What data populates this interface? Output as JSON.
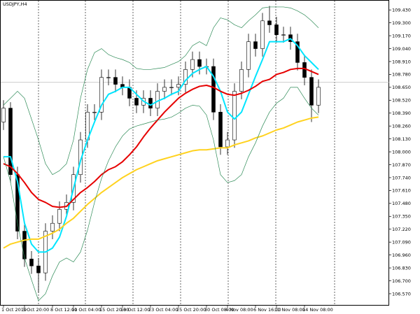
{
  "chart_data": {
    "type": "candlestick",
    "title": "USDJPY,H4",
    "categories": [
      "1 Oct 2019",
      null,
      null,
      "3 Oct 20:00",
      null,
      null,
      null,
      "8 Oct 12:00",
      null,
      null,
      "11 Oct 04:00",
      null,
      null,
      null,
      "15 Oct 20:00",
      null,
      null,
      "18 Oct 12:00",
      null,
      null,
      null,
      "23 Oct 04:00",
      null,
      null,
      null,
      "25 Oct 20:00",
      null,
      null,
      null,
      "30 Oct 08:00",
      null,
      null,
      "4 Nov 08:00",
      null,
      null,
      null,
      "6 Nov 16:00",
      null,
      null,
      "11 Nov 08:00",
      null,
      null,
      null,
      "14 Nov 08:00",
      null,
      null
    ],
    "open": [
      108.3,
      108.44,
      107.77,
      107.2,
      106.92,
      106.85,
      106.78,
      107.2,
      107.28,
      107.42,
      107.49,
      107.77,
      108.12,
      108.4,
      108.4,
      108.75,
      108.75,
      108.68,
      108.65,
      108.54,
      108.47,
      108.54,
      108.44,
      108.61,
      108.65,
      108.65,
      108.68,
      108.83,
      108.93,
      108.86,
      108.86,
      108.4,
      108.05,
      108.12,
      108.61,
      108.83,
      109.11,
      109.04,
      109.32,
      109.28,
      109.18,
      109.18,
      109.11,
      108.9,
      108.75,
      108.47
    ],
    "high": [
      108.52,
      108.5,
      107.85,
      107.28,
      107.0,
      106.93,
      107.28,
      107.36,
      107.5,
      107.57,
      107.85,
      108.2,
      108.48,
      108.48,
      108.83,
      108.83,
      108.83,
      108.76,
      108.73,
      108.62,
      108.62,
      108.62,
      108.69,
      108.73,
      108.73,
      108.76,
      108.91,
      109.01,
      109.01,
      108.94,
      108.94,
      108.48,
      108.2,
      108.69,
      108.91,
      109.19,
      109.19,
      109.4,
      109.47,
      109.36,
      109.26,
      109.26,
      109.19,
      108.98,
      108.83,
      108.73
    ],
    "low": [
      108.22,
      107.69,
      107.12,
      106.84,
      106.77,
      106.58,
      106.7,
      107.12,
      107.2,
      107.34,
      107.41,
      107.69,
      108.04,
      108.32,
      108.32,
      108.67,
      108.6,
      108.57,
      108.46,
      108.39,
      108.39,
      108.36,
      108.36,
      108.53,
      108.57,
      108.57,
      108.6,
      108.75,
      108.78,
      108.78,
      108.32,
      107.97,
      107.97,
      108.04,
      108.53,
      108.75,
      108.96,
      108.96,
      109.2,
      109.1,
      109.1,
      109.03,
      108.82,
      108.67,
      108.3,
      108.39
    ],
    "close": [
      108.44,
      107.77,
      107.2,
      106.92,
      106.85,
      106.78,
      107.2,
      107.28,
      107.42,
      107.49,
      107.77,
      108.12,
      108.4,
      108.4,
      108.75,
      108.75,
      108.68,
      108.65,
      108.54,
      108.47,
      108.54,
      108.44,
      108.61,
      108.65,
      108.65,
      108.68,
      108.83,
      108.93,
      108.86,
      108.86,
      108.4,
      108.05,
      108.12,
      108.61,
      108.83,
      109.11,
      109.04,
      109.32,
      109.28,
      109.18,
      109.18,
      109.11,
      108.9,
      108.75,
      108.47,
      108.65
    ],
    "series": [
      {
        "color": "#00e5ff",
        "width": 2,
        "values": [
          107.95,
          107.95,
          107.7,
          107.28,
          107.07,
          106.99,
          106.99,
          107.03,
          107.14,
          107.35,
          107.63,
          107.91,
          108.12,
          108.3,
          108.47,
          108.58,
          108.61,
          108.65,
          108.65,
          108.58,
          108.51,
          108.47,
          108.51,
          108.54,
          108.58,
          108.61,
          108.72,
          108.79,
          108.83,
          108.86,
          108.76,
          108.61,
          108.4,
          108.33,
          108.4,
          108.58,
          108.76,
          108.93,
          109.11,
          109.11,
          109.11,
          109.14,
          109.07,
          108.97,
          108.9,
          108.83
        ]
      },
      {
        "color": "#e60000",
        "width": 2,
        "values": [
          107.88,
          107.85,
          107.78,
          107.69,
          107.59,
          107.52,
          107.49,
          107.45,
          107.44,
          107.45,
          107.52,
          107.59,
          107.64,
          107.7,
          107.77,
          107.82,
          107.85,
          107.9,
          107.97,
          108.05,
          108.15,
          108.24,
          108.32,
          108.4,
          108.47,
          108.54,
          108.59,
          108.63,
          108.66,
          108.67,
          108.65,
          108.61,
          108.58,
          108.57,
          108.59,
          108.62,
          108.66,
          108.71,
          108.73,
          108.78,
          108.8,
          108.83,
          108.84,
          108.84,
          108.81,
          108.78
        ]
      },
      {
        "color": "#ffd21f",
        "width": 2,
        "values": [
          107.03,
          107.07,
          107.09,
          107.11,
          107.12,
          107.12,
          107.15,
          107.18,
          107.22,
          107.28,
          107.33,
          107.4,
          107.47,
          107.53,
          107.59,
          107.64,
          107.69,
          107.74,
          107.78,
          107.82,
          107.85,
          107.88,
          107.91,
          107.93,
          107.95,
          107.97,
          107.99,
          108.01,
          108.02,
          108.02,
          108.03,
          108.04,
          108.04,
          108.07,
          108.09,
          108.11,
          108.14,
          108.16,
          108.19,
          108.22,
          108.24,
          108.27,
          108.3,
          108.32,
          108.34,
          108.35
        ]
      },
      {
        "color": "#2e8b57",
        "width": 0.7,
        "values": [
          108.47,
          108.54,
          108.61,
          108.54,
          108.33,
          108.12,
          107.88,
          107.77,
          107.81,
          107.88,
          108.12,
          108.54,
          108.83,
          109.0,
          109.04,
          108.98,
          108.95,
          108.93,
          108.9,
          108.84,
          108.83,
          108.83,
          108.84,
          108.85,
          108.88,
          108.91,
          108.97,
          109.07,
          109.11,
          109.07,
          109.25,
          109.35,
          109.33,
          109.28,
          109.25,
          109.32,
          109.38,
          109.45,
          109.46,
          109.46,
          109.46,
          109.45,
          109.42,
          109.38,
          109.32,
          109.25
        ]
      },
      {
        "color": "#2e8b57",
        "width": 0.7,
        "values": [
          107.95,
          107.7,
          107.28,
          106.93,
          106.71,
          106.5,
          106.57,
          106.75,
          106.89,
          106.93,
          106.89,
          106.99,
          107.21,
          107.49,
          107.73,
          107.91,
          108.05,
          108.16,
          108.23,
          108.26,
          108.28,
          108.3,
          108.32,
          108.33,
          108.35,
          108.39,
          108.44,
          108.47,
          108.46,
          108.37,
          108.12,
          107.77,
          107.69,
          107.71,
          107.77,
          107.95,
          108.09,
          108.26,
          108.4,
          108.49,
          108.54,
          108.65,
          108.65,
          108.54,
          108.44,
          108.37
        ]
      }
    ],
    "bid_line": 108.7,
    "ylim": [
      106.45,
      109.53
    ],
    "yticks": [
      {
        "value": 109.43,
        "label": "109.430"
      },
      {
        "value": 109.3,
        "label": "109.300"
      },
      {
        "value": 109.17,
        "label": "109.170"
      },
      {
        "value": 109.04,
        "label": "109.040"
      },
      {
        "value": 108.91,
        "label": "108.910"
      },
      {
        "value": 108.78,
        "label": "108.780"
      },
      {
        "value": 108.65,
        "label": "108.650"
      },
      {
        "value": 108.52,
        "label": "108.520"
      },
      {
        "value": 108.39,
        "label": "108.390"
      },
      {
        "value": 108.26,
        "label": "108.260"
      },
      {
        "value": 108.13,
        "label": "108.130"
      },
      {
        "value": 108.0,
        "label": "108.000"
      },
      {
        "value": 107.87,
        "label": "107.870"
      },
      {
        "value": 107.74,
        "label": "107.740"
      },
      {
        "value": 107.61,
        "label": "107.610"
      },
      {
        "value": 107.48,
        "label": "107.480"
      },
      {
        "value": 107.35,
        "label": "107.350"
      },
      {
        "value": 107.22,
        "label": "107.220"
      },
      {
        "value": 107.09,
        "label": "107.090"
      },
      {
        "value": 106.96,
        "label": "106.960"
      },
      {
        "value": 106.83,
        "label": "106.830"
      },
      {
        "value": 106.7,
        "label": "106.700"
      },
      {
        "value": 106.57,
        "label": "106.570"
      }
    ]
  }
}
